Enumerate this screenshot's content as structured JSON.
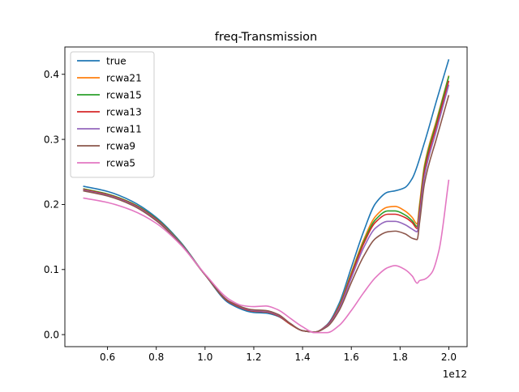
{
  "chart_data": {
    "type": "line",
    "title": "freq-Transmission",
    "xlabel": "",
    "ylabel": "",
    "x_offset_label": "1e12",
    "xlim": [
      0.425,
      2.075
    ],
    "ylim": [
      -0.0185,
      0.442
    ],
    "xticks": [
      0.6,
      0.8,
      1.0,
      1.2,
      1.4,
      1.6,
      1.8,
      2.0
    ],
    "xtick_labels": [
      "0.6",
      "0.8",
      "1.0",
      "1.2",
      "1.4",
      "1.6",
      "1.8",
      "2.0"
    ],
    "yticks": [
      0.0,
      0.1,
      0.2,
      0.3,
      0.4
    ],
    "ytick_labels": [
      "0.0",
      "0.1",
      "0.2",
      "0.3",
      "0.4"
    ],
    "grid": false,
    "legend_position": "upper-left",
    "series": [
      {
        "name": "true",
        "color": "#1f77b4",
        "x": [
          0.5,
          0.6,
          0.7,
          0.8,
          0.9,
          1.0,
          1.1,
          1.2,
          1.25,
          1.3,
          1.35,
          1.4,
          1.45,
          1.5,
          1.55,
          1.6,
          1.65,
          1.7,
          1.75,
          1.78,
          1.82,
          1.85,
          1.9,
          1.95,
          2.0
        ],
        "values": [
          0.228,
          0.22,
          0.205,
          0.18,
          0.142,
          0.092,
          0.048,
          0.034,
          0.033,
          0.028,
          0.016,
          0.006,
          0.004,
          0.015,
          0.048,
          0.103,
          0.158,
          0.202,
          0.219,
          0.221,
          0.226,
          0.24,
          0.295,
          0.36,
          0.423
        ]
      },
      {
        "name": "rcwa21",
        "color": "#ff7f0e",
        "x": [
          0.5,
          0.6,
          0.7,
          0.8,
          0.9,
          1.0,
          1.1,
          1.2,
          1.25,
          1.3,
          1.35,
          1.4,
          1.45,
          1.5,
          1.55,
          1.6,
          1.65,
          1.7,
          1.75,
          1.78,
          1.82,
          1.85,
          1.87,
          1.88,
          1.9,
          1.95,
          2.0
        ],
        "values": [
          0.224,
          0.216,
          0.202,
          0.178,
          0.141,
          0.092,
          0.05,
          0.036,
          0.035,
          0.029,
          0.016,
          0.006,
          0.004,
          0.014,
          0.044,
          0.095,
          0.145,
          0.182,
          0.196,
          0.197,
          0.19,
          0.18,
          0.17,
          0.2,
          0.26,
          0.33,
          0.398
        ]
      },
      {
        "name": "rcwa15",
        "color": "#2ca02c",
        "x": [
          0.5,
          0.6,
          0.7,
          0.8,
          0.9,
          1.0,
          1.1,
          1.2,
          1.25,
          1.3,
          1.35,
          1.4,
          1.45,
          1.5,
          1.55,
          1.6,
          1.65,
          1.7,
          1.75,
          1.78,
          1.82,
          1.85,
          1.87,
          1.88,
          1.9,
          1.95,
          2.0
        ],
        "values": [
          0.224,
          0.216,
          0.202,
          0.178,
          0.141,
          0.092,
          0.05,
          0.036,
          0.035,
          0.029,
          0.016,
          0.006,
          0.004,
          0.014,
          0.043,
          0.093,
          0.142,
          0.177,
          0.19,
          0.19,
          0.184,
          0.175,
          0.166,
          0.195,
          0.256,
          0.327,
          0.397
        ]
      },
      {
        "name": "rcwa13",
        "color": "#d62728",
        "x": [
          0.5,
          0.6,
          0.7,
          0.8,
          0.9,
          1.0,
          1.1,
          1.2,
          1.25,
          1.3,
          1.35,
          1.4,
          1.45,
          1.5,
          1.55,
          1.6,
          1.65,
          1.7,
          1.75,
          1.78,
          1.82,
          1.85,
          1.87,
          1.88,
          1.9,
          1.95,
          2.0
        ],
        "values": [
          0.223,
          0.215,
          0.201,
          0.177,
          0.14,
          0.092,
          0.05,
          0.036,
          0.035,
          0.029,
          0.016,
          0.006,
          0.004,
          0.014,
          0.042,
          0.091,
          0.139,
          0.173,
          0.185,
          0.185,
          0.18,
          0.172,
          0.163,
          0.19,
          0.25,
          0.322,
          0.39
        ]
      },
      {
        "name": "rcwa11",
        "color": "#9467bd",
        "x": [
          0.5,
          0.6,
          0.7,
          0.8,
          0.9,
          1.0,
          1.1,
          1.2,
          1.25,
          1.3,
          1.35,
          1.4,
          1.45,
          1.5,
          1.55,
          1.6,
          1.65,
          1.7,
          1.75,
          1.78,
          1.82,
          1.85,
          1.87,
          1.88,
          1.9,
          1.95,
          2.0
        ],
        "values": [
          0.222,
          0.214,
          0.2,
          0.176,
          0.14,
          0.092,
          0.051,
          0.037,
          0.036,
          0.03,
          0.017,
          0.006,
          0.004,
          0.013,
          0.04,
          0.087,
          0.133,
          0.164,
          0.174,
          0.174,
          0.169,
          0.162,
          0.158,
          0.183,
          0.243,
          0.315,
          0.384
        ]
      },
      {
        "name": "rcwa9",
        "color": "#8c564b",
        "x": [
          0.5,
          0.6,
          0.7,
          0.8,
          0.9,
          1.0,
          1.1,
          1.2,
          1.25,
          1.3,
          1.35,
          1.4,
          1.45,
          1.5,
          1.55,
          1.6,
          1.65,
          1.7,
          1.75,
          1.78,
          1.82,
          1.85,
          1.87,
          1.88,
          1.9,
          1.95,
          2.0
        ],
        "values": [
          0.221,
          0.213,
          0.199,
          0.175,
          0.139,
          0.092,
          0.051,
          0.038,
          0.037,
          0.031,
          0.017,
          0.006,
          0.004,
          0.012,
          0.037,
          0.08,
          0.12,
          0.148,
          0.158,
          0.159,
          0.155,
          0.148,
          0.146,
          0.172,
          0.232,
          0.302,
          0.368
        ]
      },
      {
        "name": "rcwa5",
        "color": "#e377c2",
        "x": [
          0.5,
          0.6,
          0.7,
          0.8,
          0.9,
          1.0,
          1.1,
          1.15,
          1.2,
          1.25,
          1.3,
          1.35,
          1.4,
          1.45,
          1.5,
          1.55,
          1.6,
          1.65,
          1.7,
          1.75,
          1.78,
          1.82,
          1.85,
          1.87,
          1.88,
          1.9,
          1.93,
          1.96,
          2.0
        ],
        "values": [
          0.21,
          0.203,
          0.191,
          0.171,
          0.138,
          0.093,
          0.054,
          0.045,
          0.043,
          0.044,
          0.038,
          0.025,
          0.012,
          0.003,
          0.003,
          0.014,
          0.037,
          0.064,
          0.088,
          0.103,
          0.106,
          0.1,
          0.09,
          0.079,
          0.083,
          0.085,
          0.095,
          0.13,
          0.238
        ]
      }
    ]
  }
}
